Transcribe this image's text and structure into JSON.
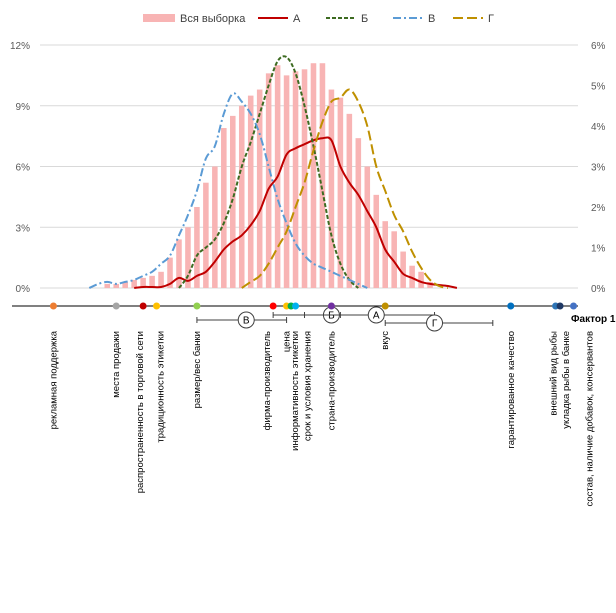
{
  "chart_data": {
    "type": "bar+line",
    "legend_position": "top",
    "grid": true,
    "y_left": {
      "ticks": [
        "0%",
        "3%",
        "6%",
        "9%",
        "12%"
      ],
      "range": [
        0,
        12
      ]
    },
    "y_right": {
      "ticks": [
        "0%",
        "1%",
        "2%",
        "3%",
        "4%",
        "5%",
        "6%"
      ],
      "range": [
        0,
        6
      ]
    },
    "x": [
      -2.6,
      -2.5,
      -2.4,
      -2.3,
      -2.2,
      -2.1,
      -2.0,
      -1.9,
      -1.8,
      -1.7,
      -1.6,
      -1.5,
      -1.4,
      -1.3,
      -1.2,
      -1.1,
      -1.0,
      -0.9,
      -0.8,
      -0.7,
      -0.6,
      -0.5,
      -0.4,
      -0.3,
      -0.2,
      -0.1,
      0.0,
      0.1,
      0.2,
      0.3,
      0.4,
      0.5,
      0.6,
      0.7,
      0.8,
      0.9,
      1.0,
      1.1,
      1.2,
      1.3,
      1.4,
      1.5,
      1.6,
      1.7,
      1.8,
      1.9,
      2.0,
      2.1,
      2.2,
      2.3,
      2.4,
      2.5,
      2.6,
      2.7,
      2.8,
      2.9,
      3.0
    ],
    "bars": {
      "name": "Вся выборка",
      "color": "#f8b4b4",
      "values": [
        0,
        0,
        0,
        0,
        0,
        0,
        0.2,
        0.2,
        0.3,
        0.4,
        0.5,
        0.6,
        0.8,
        1.5,
        2.4,
        3.0,
        4.0,
        5.2,
        6.0,
        7.9,
        8.5,
        9.0,
        9.5,
        9.8,
        10.6,
        11.0,
        10.5,
        10.7,
        10.8,
        11.1,
        11.1,
        9.8,
        9.4,
        8.6,
        7.4,
        6.0,
        4.6,
        3.3,
        2.8,
        1.8,
        1.1,
        0.8,
        0.3,
        0,
        0,
        0,
        0,
        0,
        0,
        0,
        0,
        0,
        0,
        0,
        0,
        0,
        0
      ]
    },
    "series": [
      {
        "name": "А",
        "color": "#c00000",
        "dash": "none",
        "axis": "left",
        "values": [
          null,
          null,
          null,
          null,
          null,
          null,
          null,
          null,
          null,
          0,
          0.05,
          0.05,
          0.05,
          0.2,
          0.5,
          0.35,
          0.6,
          0.8,
          1.3,
          1.9,
          2.3,
          2.6,
          3.1,
          3.8,
          4.9,
          5.5,
          6.6,
          6.9,
          7.1,
          7.3,
          7.4,
          7.3,
          6.0,
          5.2,
          4.6,
          3.8,
          3.0,
          1.9,
          1.3,
          0.7,
          0.5,
          0.3,
          0.2,
          0.15,
          0.1,
          0.0,
          null,
          null,
          null,
          null,
          null,
          null,
          null,
          null,
          null,
          null,
          null
        ]
      },
      {
        "name": "Б",
        "color": "#3d6b21",
        "dash": "4,2",
        "axis": "right",
        "values": [
          null,
          null,
          null,
          null,
          null,
          null,
          null,
          null,
          null,
          null,
          null,
          null,
          null,
          null,
          0,
          0.3,
          0.8,
          1.0,
          1.2,
          1.6,
          2.2,
          3.0,
          3.6,
          4.3,
          5.0,
          5.6,
          5.7,
          5.3,
          4.5,
          3.5,
          2.4,
          1.3,
          0.6,
          0.2,
          0,
          null,
          null,
          null,
          null,
          null,
          null,
          null,
          null,
          null,
          null,
          null,
          null,
          null,
          null,
          null,
          null,
          null,
          null,
          null,
          null,
          null,
          null
        ]
      },
      {
        "name": "В",
        "color": "#5b9bd5",
        "dash": "8,3,2,3",
        "axis": "right",
        "values": [
          null,
          null,
          null,
          null,
          0,
          0.1,
          0.15,
          0.1,
          0.15,
          0.2,
          0.3,
          0.4,
          0.6,
          0.8,
          1.3,
          1.8,
          2.4,
          3.2,
          3.5,
          4.3,
          4.8,
          4.6,
          4.3,
          3.8,
          3.0,
          2.2,
          1.6,
          1.1,
          0.8,
          0.6,
          0.5,
          0.4,
          0.3,
          0.2,
          0.1,
          0,
          null,
          null,
          null,
          null,
          null,
          null,
          null,
          null,
          null,
          null,
          null,
          null,
          null,
          null,
          null,
          null,
          null,
          null,
          null,
          null,
          null
        ]
      },
      {
        "name": "Г",
        "color": "#bf9000",
        "dash": "10,4",
        "axis": "right",
        "values": [
          null,
          null,
          null,
          null,
          null,
          null,
          null,
          null,
          null,
          null,
          null,
          null,
          null,
          null,
          null,
          null,
          null,
          null,
          null,
          null,
          null,
          0,
          0.15,
          0.3,
          0.6,
          1.0,
          1.4,
          2.0,
          2.6,
          3.4,
          4.1,
          4.6,
          4.7,
          4.9,
          4.6,
          4.0,
          3.0,
          2.4,
          1.8,
          1.4,
          0.9,
          0.5,
          0.2,
          0.05,
          0,
          null,
          null,
          null,
          null,
          null,
          null,
          null,
          null,
          null,
          null,
          null,
          null
        ]
      }
    ],
    "factor_axis": {
      "title": "Фактор 1",
      "points": [
        {
          "label": "рекламная поддержка",
          "value": -2.6,
          "color": "#ed7d31"
        },
        {
          "label": "места продажи",
          "value": -1.9,
          "color": "#a5a5a5"
        },
        {
          "label": "распространенность в торговой сети",
          "value": -1.6,
          "color": "#c00000"
        },
        {
          "label": "традиционность этикетки",
          "value": -1.45,
          "color": "#ffc000"
        },
        {
          "label": "размер/вес банки",
          "value": -1.0,
          "color": "#92d050"
        },
        {
          "label": "фирма-производитель",
          "value": -0.15,
          "color": "#ff0000"
        },
        {
          "label": "цена",
          "value": 0.0,
          "color": "#ffc000"
        },
        {
          "label": "информативность этикетки",
          "value": 0.05,
          "color": "#00b050"
        },
        {
          "label": "срок и условия хранения",
          "value": 0.1,
          "color": "#00b0f0"
        },
        {
          "label": "страна-производитель",
          "value": 0.5,
          "color": "#7030a0"
        },
        {
          "label": "вкус",
          "value": 1.1,
          "color": "#bf9000"
        },
        {
          "label": "гарантированное качество",
          "value": 2.5,
          "color": "#0070c0"
        },
        {
          "label": "внешний вид рыбы",
          "value": 3.0,
          "color": "#2e75b6"
        },
        {
          "label": "укладка рыбы в банке",
          "value": 3.05,
          "color": "#1f3864"
        },
        {
          "label": "состав, наличие добавок, консервантов",
          "value": 3.2,
          "color": "#4472c4"
        }
      ],
      "groups": [
        {
          "label": "В",
          "from": -1.0,
          "to": 0.0,
          "center": -0.45
        },
        {
          "label": "Б",
          "from": -0.15,
          "to": 0.6,
          "center": 0.5
        },
        {
          "label": "А",
          "from": 0.2,
          "to": 1.65,
          "center": 1.0
        },
        {
          "label": "Г",
          "from": 1.1,
          "to": 2.3,
          "center": 1.65
        }
      ]
    }
  }
}
